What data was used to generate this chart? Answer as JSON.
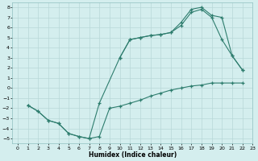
{
  "xlabel": "Humidex (Indice chaleur)",
  "xlim": [
    -0.5,
    23
  ],
  "ylim": [
    -5.5,
    8.5
  ],
  "xticks": [
    0,
    1,
    2,
    3,
    4,
    5,
    6,
    7,
    8,
    9,
    10,
    11,
    12,
    13,
    14,
    15,
    16,
    17,
    18,
    19,
    20,
    21,
    22,
    23
  ],
  "yticks": [
    -5,
    -4,
    -3,
    -2,
    -1,
    0,
    1,
    2,
    3,
    4,
    5,
    6,
    7,
    8
  ],
  "line_color": "#2e7d6e",
  "background_color": "#d4eeee",
  "grid_color": "#b8d8d8",
  "line1_x": [
    1,
    2,
    3,
    4,
    5,
    6,
    7,
    8,
    9,
    10,
    11,
    12,
    13,
    14,
    15,
    16,
    17,
    18,
    19,
    20,
    21,
    22
  ],
  "line1_y": [
    -1.7,
    -2.3,
    -3.2,
    -3.5,
    -4.5,
    -4.8,
    -5.0,
    -4.8,
    -2.0,
    -1.8,
    -1.5,
    -1.2,
    -0.8,
    -0.5,
    -0.2,
    0.0,
    0.2,
    0.3,
    0.5,
    0.5,
    0.5,
    0.5
  ],
  "line2_x": [
    1,
    2,
    3,
    4,
    5,
    6,
    7,
    8,
    10,
    11,
    12,
    13,
    14,
    15,
    16,
    17,
    18,
    19,
    20,
    21,
    22
  ],
  "line2_y": [
    -1.7,
    -2.3,
    -3.2,
    -3.5,
    -4.5,
    -4.8,
    -5.0,
    -1.5,
    3.0,
    4.8,
    5.0,
    5.2,
    5.3,
    5.5,
    6.2,
    7.5,
    7.8,
    7.0,
    4.8,
    3.2,
    1.8
  ],
  "line3_x": [
    10,
    11,
    12,
    13,
    14,
    15,
    16,
    17,
    18,
    19,
    20,
    21,
    22
  ],
  "line3_y": [
    3.0,
    4.8,
    5.0,
    5.2,
    5.3,
    5.5,
    6.5,
    7.8,
    8.0,
    7.2,
    7.0,
    3.2,
    1.8
  ]
}
